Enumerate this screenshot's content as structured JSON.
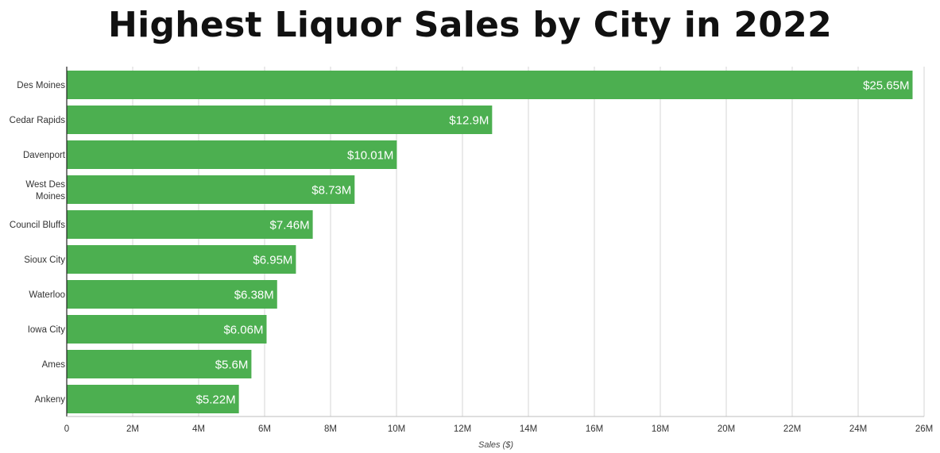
{
  "chart_data": {
    "type": "bar",
    "orientation": "horizontal",
    "title": "Highest Liquor Sales by City in 2022",
    "xlabel": "Sales ($)",
    "ylabel": "",
    "categories": [
      "Des Moines",
      "Cedar Rapids",
      "Davenport",
      "West Des Moines",
      "Council Bluffs",
      "Sioux City",
      "Waterloo",
      "Iowa City",
      "Ames",
      "Ankeny"
    ],
    "values": [
      25650000,
      12900000,
      10010000,
      8730000,
      7460000,
      6950000,
      6380000,
      6060000,
      5600000,
      5220000
    ],
    "data_labels": [
      "$25.65M",
      "$12.9M",
      "$10.01M",
      "$8.73M",
      "$7.46M",
      "$6.95M",
      "$6.38M",
      "$6.06M",
      "$5.6M",
      "$5.22M"
    ],
    "xlim": [
      0,
      26000000
    ],
    "xticks": [
      0,
      2000000,
      4000000,
      6000000,
      8000000,
      10000000,
      12000000,
      14000000,
      16000000,
      18000000,
      20000000,
      22000000,
      24000000,
      26000000
    ],
    "xtick_labels": [
      "0",
      "2M",
      "4M",
      "6M",
      "8M",
      "10M",
      "12M",
      "14M",
      "16M",
      "18M",
      "20M",
      "22M",
      "24M",
      "26M"
    ],
    "grid": true,
    "legend": "none",
    "colors": {
      "bar": "#4caf50",
      "grid": "#d4d4d4",
      "axis": "#222222"
    }
  }
}
